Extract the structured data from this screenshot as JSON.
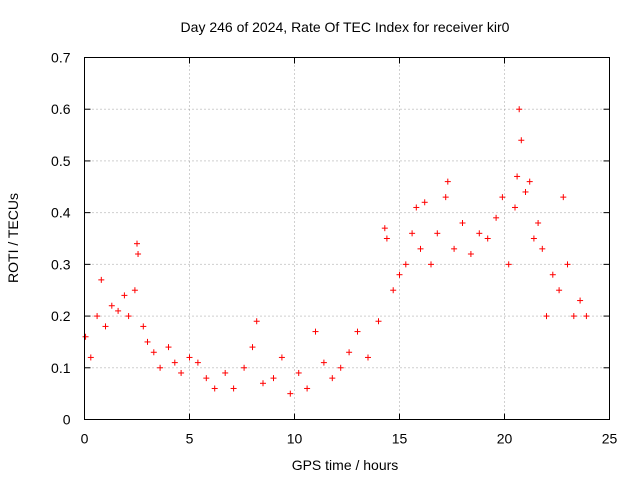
{
  "chart_data": {
    "type": "scatter",
    "title": "Day 246 of 2024, Rate Of TEC Index for receiver kir0",
    "xlabel": "GPS time / hours",
    "ylabel": "ROTI / TECUs",
    "xlim": [
      0,
      25
    ],
    "ylim": [
      0,
      0.7
    ],
    "xticks": [
      0,
      5,
      10,
      15,
      20,
      25
    ],
    "xtick_labels": [
      "0",
      "5",
      "10",
      "15",
      "20",
      "25"
    ],
    "yticks": [
      0,
      0.1,
      0.2,
      0.3,
      0.4,
      0.5,
      0.6,
      0.7
    ],
    "ytick_labels": [
      "0",
      "0.1",
      "0.2",
      "0.3",
      "0.4",
      "0.5",
      "0.6",
      "0.7"
    ],
    "grid": true,
    "marker": "+",
    "color": "#ff0000",
    "series": [
      {
        "name": "ROTI",
        "x": [
          0.05,
          0.3,
          0.6,
          0.8,
          1.0,
          1.3,
          1.6,
          1.9,
          2.1,
          2.4,
          2.5,
          2.55,
          2.8,
          3.0,
          3.3,
          3.6,
          4.0,
          4.3,
          4.6,
          5.0,
          5.4,
          5.8,
          6.2,
          6.7,
          7.1,
          7.6,
          8.0,
          8.2,
          8.5,
          9.0,
          9.4,
          9.8,
          10.2,
          10.6,
          11.0,
          11.4,
          11.8,
          12.2,
          12.6,
          13.0,
          13.5,
          14.0,
          14.3,
          14.4,
          14.7,
          15.0,
          15.3,
          15.6,
          15.8,
          16.0,
          16.2,
          16.5,
          16.8,
          17.2,
          17.3,
          17.6,
          18.0,
          18.4,
          18.8,
          19.2,
          19.6,
          19.9,
          20.2,
          20.5,
          20.6,
          20.7,
          20.8,
          21.0,
          21.2,
          21.4,
          21.6,
          21.8,
          22.0,
          22.3,
          22.6,
          22.8,
          23.0,
          23.3,
          23.6,
          23.9
        ],
        "values": [
          0.16,
          0.12,
          0.2,
          0.27,
          0.18,
          0.22,
          0.21,
          0.24,
          0.2,
          0.25,
          0.34,
          0.32,
          0.18,
          0.15,
          0.13,
          0.1,
          0.14,
          0.11,
          0.09,
          0.12,
          0.11,
          0.08,
          0.06,
          0.09,
          0.06,
          0.1,
          0.14,
          0.19,
          0.07,
          0.08,
          0.12,
          0.05,
          0.09,
          0.06,
          0.17,
          0.11,
          0.08,
          0.1,
          0.13,
          0.17,
          0.12,
          0.19,
          0.37,
          0.35,
          0.25,
          0.28,
          0.3,
          0.36,
          0.41,
          0.33,
          0.42,
          0.3,
          0.36,
          0.43,
          0.46,
          0.33,
          0.38,
          0.32,
          0.36,
          0.35,
          0.39,
          0.43,
          0.3,
          0.41,
          0.47,
          0.6,
          0.54,
          0.44,
          0.46,
          0.35,
          0.38,
          0.33,
          0.2,
          0.28,
          0.25,
          0.43,
          0.3,
          0.2,
          0.23,
          0.2
        ]
      }
    ]
  }
}
